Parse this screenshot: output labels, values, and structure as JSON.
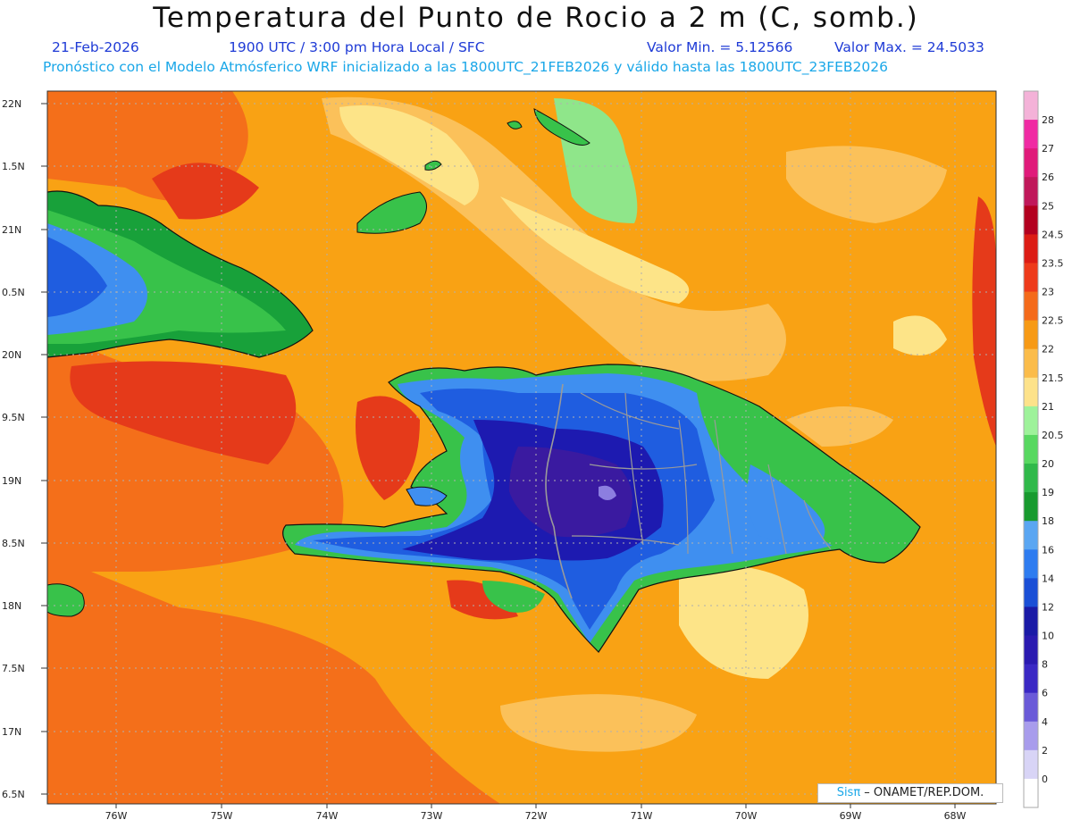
{
  "header": {
    "title": "Temperatura del Punto de Rocio a 2 m (C, somb.)",
    "date": "21-Feb-2026",
    "time": "1900 UTC / 3:00 pm Hora Local / SFC",
    "min": "Valor Min. = 5.12566",
    "max": "Valor Max. = 24.5033",
    "model_line": "Pronóstico con el Modelo Atmósferico WRF inicializado a las 1800UTC_21FEB2026 y válido hasta las  1800UTC_23FEB2026"
  },
  "map": {
    "lat_labels": [
      "22N",
      "1.5N",
      "21N",
      "0.5N",
      "20N",
      "9.5N",
      "19N",
      "8.5N",
      "18N",
      "7.5N",
      "17N",
      "6.5N"
    ],
    "lon_labels": [
      "76W",
      "75W",
      "74W",
      "73W",
      "72W",
      "71W",
      "70W",
      "69W",
      "68W"
    ],
    "colors": {
      "sea_orange": "#f9a214",
      "deep_orange": "#f46f1a",
      "red": "#e53a1a",
      "light_orange": "#fbc15a",
      "pale_yellow": "#fde488",
      "light_green": "#8fe68a",
      "green": "#38c24a",
      "dark_green": "#18a13a",
      "light_blue": "#3f8ff0",
      "blue": "#1f5de0",
      "dark_blue": "#1d1ab0",
      "purple": "#3a1aa0"
    }
  },
  "colorbar": {
    "labels": [
      "28",
      "27",
      "26",
      "25",
      "24.5",
      "23.5",
      "23",
      "22.5",
      "22",
      "21.5",
      "21",
      "20.5",
      "20",
      "19",
      "18",
      "16",
      "14",
      "12",
      "10",
      "8",
      "6",
      "4",
      "2",
      "0"
    ],
    "colors": [
      "#f4b2d8",
      "#f02aa3",
      "#e01a7a",
      "#c0185a",
      "#b3001f",
      "#dc1c14",
      "#ee3a1a",
      "#f46a1a",
      "#f79a15",
      "#fbbc4a",
      "#fde28a",
      "#9ef29a",
      "#58d860",
      "#30b94a",
      "#189a2e",
      "#5aa6f2",
      "#2e7cf0",
      "#1a4fd6",
      "#1a1aa6",
      "#2a1ab0",
      "#3a28c4",
      "#6a5ad8",
      "#a89cec",
      "#d8d4f6",
      "#ffffff"
    ]
  },
  "credit": {
    "logo": "Sisπ",
    "text": " – ONAMET/REP.DOM."
  }
}
